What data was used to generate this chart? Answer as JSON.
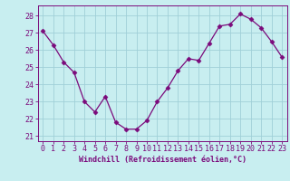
{
  "x": [
    0,
    1,
    2,
    3,
    4,
    5,
    6,
    7,
    8,
    9,
    10,
    11,
    12,
    13,
    14,
    15,
    16,
    17,
    18,
    19,
    20,
    21,
    22,
    23
  ],
  "y": [
    27.1,
    26.3,
    25.3,
    24.7,
    23.0,
    22.4,
    23.3,
    21.8,
    21.4,
    21.4,
    21.9,
    23.0,
    23.8,
    24.8,
    25.5,
    25.4,
    26.4,
    27.4,
    27.5,
    28.1,
    27.8,
    27.3,
    26.5,
    25.6
  ],
  "line_color": "#7b0a7b",
  "marker": "D",
  "marker_size": 2.5,
  "bg_color": "#c8eef0",
  "grid_color": "#a0d0d8",
  "xlabel": "Windchill (Refroidissement éolien,°C)",
  "xlabel_fontsize": 6.0,
  "tick_fontsize": 6.0,
  "ylabel_ticks": [
    21,
    22,
    23,
    24,
    25,
    26,
    27,
    28
  ],
  "ylim": [
    20.7,
    28.6
  ],
  "xlim": [
    -0.5,
    23.5
  ]
}
